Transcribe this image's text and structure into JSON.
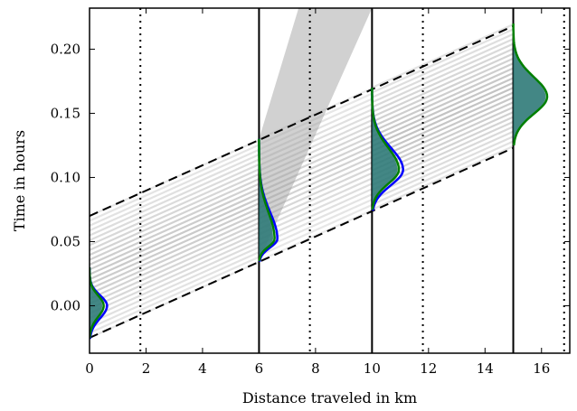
{
  "chart_data": {
    "type": "line",
    "xlabel": "Distance traveled in km",
    "ylabel": "Time in hours",
    "xlim": [
      0,
      17
    ],
    "ylim": [
      -0.037,
      0.232
    ],
    "x_ticks": [
      "0",
      "2",
      "4",
      "6",
      "8",
      "10",
      "12",
      "14",
      "16"
    ],
    "x_tick_values": [
      0,
      2,
      4,
      6,
      8,
      10,
      12,
      14,
      16
    ],
    "y_ticks": [
      "0.00",
      "0.05",
      "0.10",
      "0.15",
      "0.20"
    ],
    "y_tick_values": [
      0.0,
      0.05,
      0.1,
      0.15,
      0.2
    ],
    "grid": false,
    "station_lines_km": [
      6,
      10,
      15
    ],
    "dotted_lines_km": [
      1.8,
      7.8,
      11.8,
      16.8
    ],
    "envelope": {
      "upper": [
        [
          0,
          0.07
        ],
        [
          15,
          0.218
        ]
      ],
      "lower": [
        [
          0,
          -0.025
        ],
        [
          15,
          0.123
        ]
      ]
    },
    "trajectory_band": {
      "slope_h_per_km": 0.00987,
      "segments": [
        {
          "x0": 0,
          "x1": 6,
          "t_start": [
            -0.025,
            0.07
          ],
          "count": 26,
          "color": "#777777"
        },
        {
          "x0": 6,
          "x1": 10,
          "t_start": [
            0.035,
            0.13
          ],
          "count": 24,
          "color": "#888888"
        },
        {
          "x0": 10,
          "x1": 15,
          "t_start": [
            0.075,
            0.17
          ],
          "count": 26,
          "color": "#666666"
        }
      ],
      "steep_band": {
        "x0": 6,
        "x1": 10,
        "t_start": [
          0.035,
          0.13
        ],
        "t_end": [
          0.232,
          0.232
        ],
        "color": "#9a9a9a"
      }
    },
    "distributions": [
      {
        "at_km": 0,
        "t_range": [
          -0.025,
          0.03
        ],
        "t_peak": 0.0,
        "blue_width_km": 0.62,
        "green_width_km": 0.5,
        "fill_width_km": 0.45
      },
      {
        "at_km": 6,
        "t_range": [
          0.035,
          0.13
        ],
        "t_peak": 0.052,
        "blue_width_km": 0.65,
        "green_width_km": 0.55,
        "fill_width_km": 0.5
      },
      {
        "at_km": 10,
        "t_range": [
          0.075,
          0.17
        ],
        "t_peak": 0.106,
        "blue_width_km": 1.1,
        "green_width_km": 0.95,
        "fill_width_km": 0.9
      },
      {
        "at_km": 15,
        "t_range": [
          0.125,
          0.22
        ],
        "t_peak": 0.163,
        "blue_width_km": 0,
        "green_width_km": 1.2,
        "fill_width_km": 1.15
      }
    ],
    "colors": {
      "blue": "#0000ff",
      "green": "#008000",
      "fill": "#2f7a78",
      "axis": "#000000"
    }
  }
}
